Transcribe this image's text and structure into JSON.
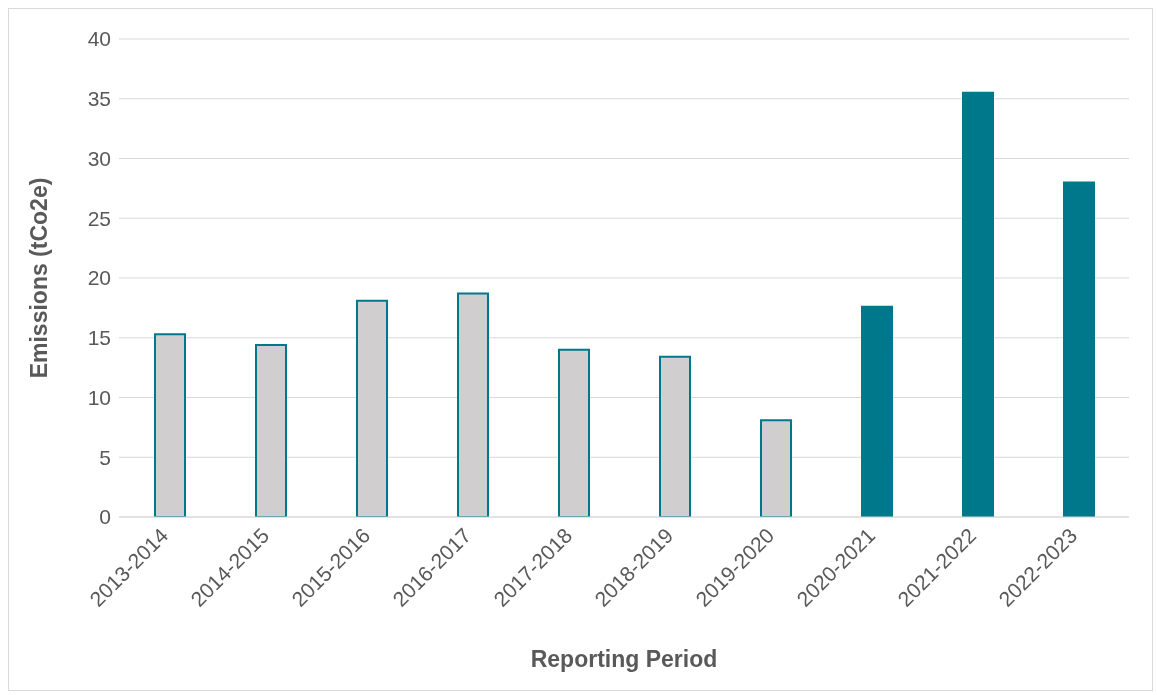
{
  "chart_data": {
    "type": "bar",
    "xlabel": "Reporting Period",
    "ylabel": "Emissions (tCo2e)",
    "categories": [
      "2013-2014",
      "2014-2015",
      "2015-2016",
      "2016-2017",
      "2017-2018",
      "2018-2019",
      "2019-2020",
      "2020-2021",
      "2021-2022",
      "2022-2023"
    ],
    "values": [
      15.3,
      14.4,
      18.1,
      18.7,
      14.0,
      13.4,
      8.1,
      17.6,
      35.5,
      28.0
    ],
    "color": "#00788c",
    "colors": [
      "#d0cece",
      "#d0cece",
      "#d0cece",
      "#d0cece",
      "#d0cece",
      "#d0cece",
      "#d0cece",
      "#00788c",
      "#00788c",
      "#00788c"
    ],
    "ylim": [
      0,
      40
    ],
    "yticks": [
      0,
      5,
      10,
      15,
      20,
      25,
      30,
      35,
      40
    ],
    "grid": "y"
  }
}
